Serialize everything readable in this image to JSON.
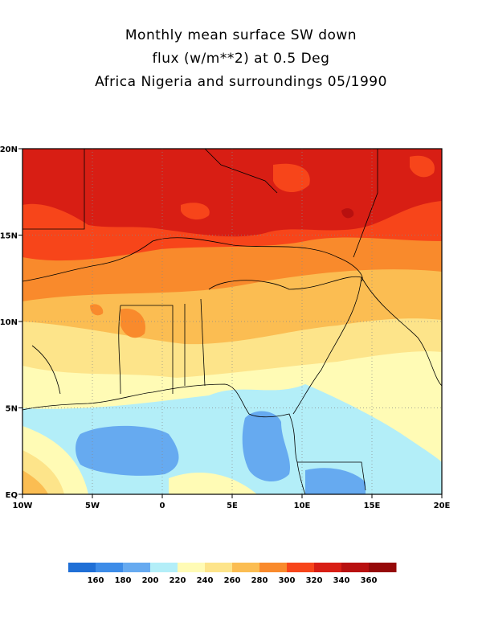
{
  "title": {
    "line1": "Monthly mean surface SW down",
    "line2": "flux (w/m**2) at 0.5 Deg",
    "line3": "Africa Nigeria and surroundings 05/1990"
  },
  "map": {
    "lon_range": [
      -10,
      20
    ],
    "lat_range": [
      0,
      20
    ],
    "x_ticks": [
      {
        "lon": -10,
        "label": "10W"
      },
      {
        "lon": -5,
        "label": "5W"
      },
      {
        "lon": 0,
        "label": "0"
      },
      {
        "lon": 5,
        "label": "5E"
      },
      {
        "lon": 10,
        "label": "10E"
      },
      {
        "lon": 15,
        "label": "15E"
      },
      {
        "lon": 20,
        "label": "20E"
      }
    ],
    "y_ticks": [
      {
        "lat": 0,
        "label": "EQ"
      },
      {
        "lat": 5,
        "label": "5N"
      },
      {
        "lat": 10,
        "label": "10N"
      },
      {
        "lat": 15,
        "label": "15N"
      },
      {
        "lat": 20,
        "label": "20N"
      }
    ],
    "grid": true
  },
  "colorbar": {
    "colors": [
      "#1f6fd6",
      "#3d8ce8",
      "#66aaf0",
      "#b3eef8",
      "#fffbb5",
      "#fde48a",
      "#fbbd52",
      "#f98a2c",
      "#f7451a",
      "#d81e14",
      "#b8100f",
      "#950909"
    ],
    "labels": [
      "160",
      "180",
      "200",
      "220",
      "240",
      "260",
      "280",
      "300",
      "320",
      "340",
      "360"
    ]
  }
}
